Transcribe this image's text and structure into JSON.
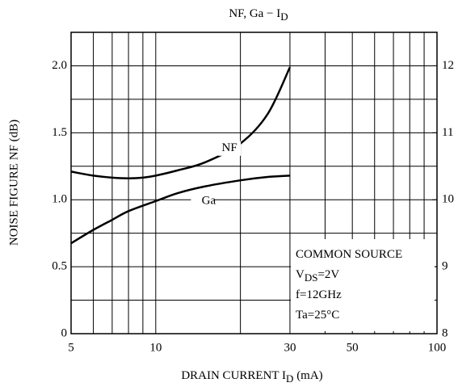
{
  "chart_data": {
    "type": "line",
    "title": [
      "NF, Ga − I",
      "D"
    ],
    "x_label": [
      "DRAIN CURRENT   I",
      "D",
      "   (mA)"
    ],
    "y_label": "NOISE FIGURE   NF   (dB)",
    "xscale": "log",
    "xlim": [
      5,
      100
    ],
    "xticks": [
      5,
      10,
      30,
      50,
      100
    ],
    "xminor": [
      6,
      7,
      8,
      9,
      20,
      40,
      60,
      70,
      80,
      90
    ],
    "ylim": [
      0,
      2.25
    ],
    "yticks": [
      0,
      0.5,
      {
        "value": 1,
        "label": "1.0"
      },
      1.5,
      {
        "value": 2,
        "label": "2.0"
      }
    ],
    "yminor": [
      0.25,
      0.75,
      1.25,
      1.75
    ],
    "y2lim": [
      8,
      12.5
    ],
    "y2ticks": [
      8,
      9,
      10,
      11,
      12
    ],
    "grid": true,
    "series": [
      {
        "name": "NF",
        "color": "#000000",
        "x": [
          5,
          6,
          7,
          8,
          9,
          10,
          12,
          15,
          20,
          25,
          30
        ],
        "values": [
          1.21,
          1.18,
          1.165,
          1.16,
          1.165,
          1.18,
          1.22,
          1.28,
          1.42,
          1.64,
          1.99
        ]
      },
      {
        "name": "Ga",
        "color": "#000000",
        "axis": "y2",
        "x": [
          5,
          6,
          7,
          8,
          10,
          12,
          15,
          20,
          25,
          30
        ],
        "values": [
          9.35,
          9.55,
          9.7,
          9.83,
          9.98,
          10.1,
          10.2,
          10.29,
          10.34,
          10.36
        ]
      }
    ],
    "annotation": [
      [
        "COMMON SOURCE"
      ],
      [
        "V",
        "DS",
        "=2V"
      ],
      [
        "f=12GHz"
      ],
      [
        "Ta=25°C"
      ]
    ]
  }
}
